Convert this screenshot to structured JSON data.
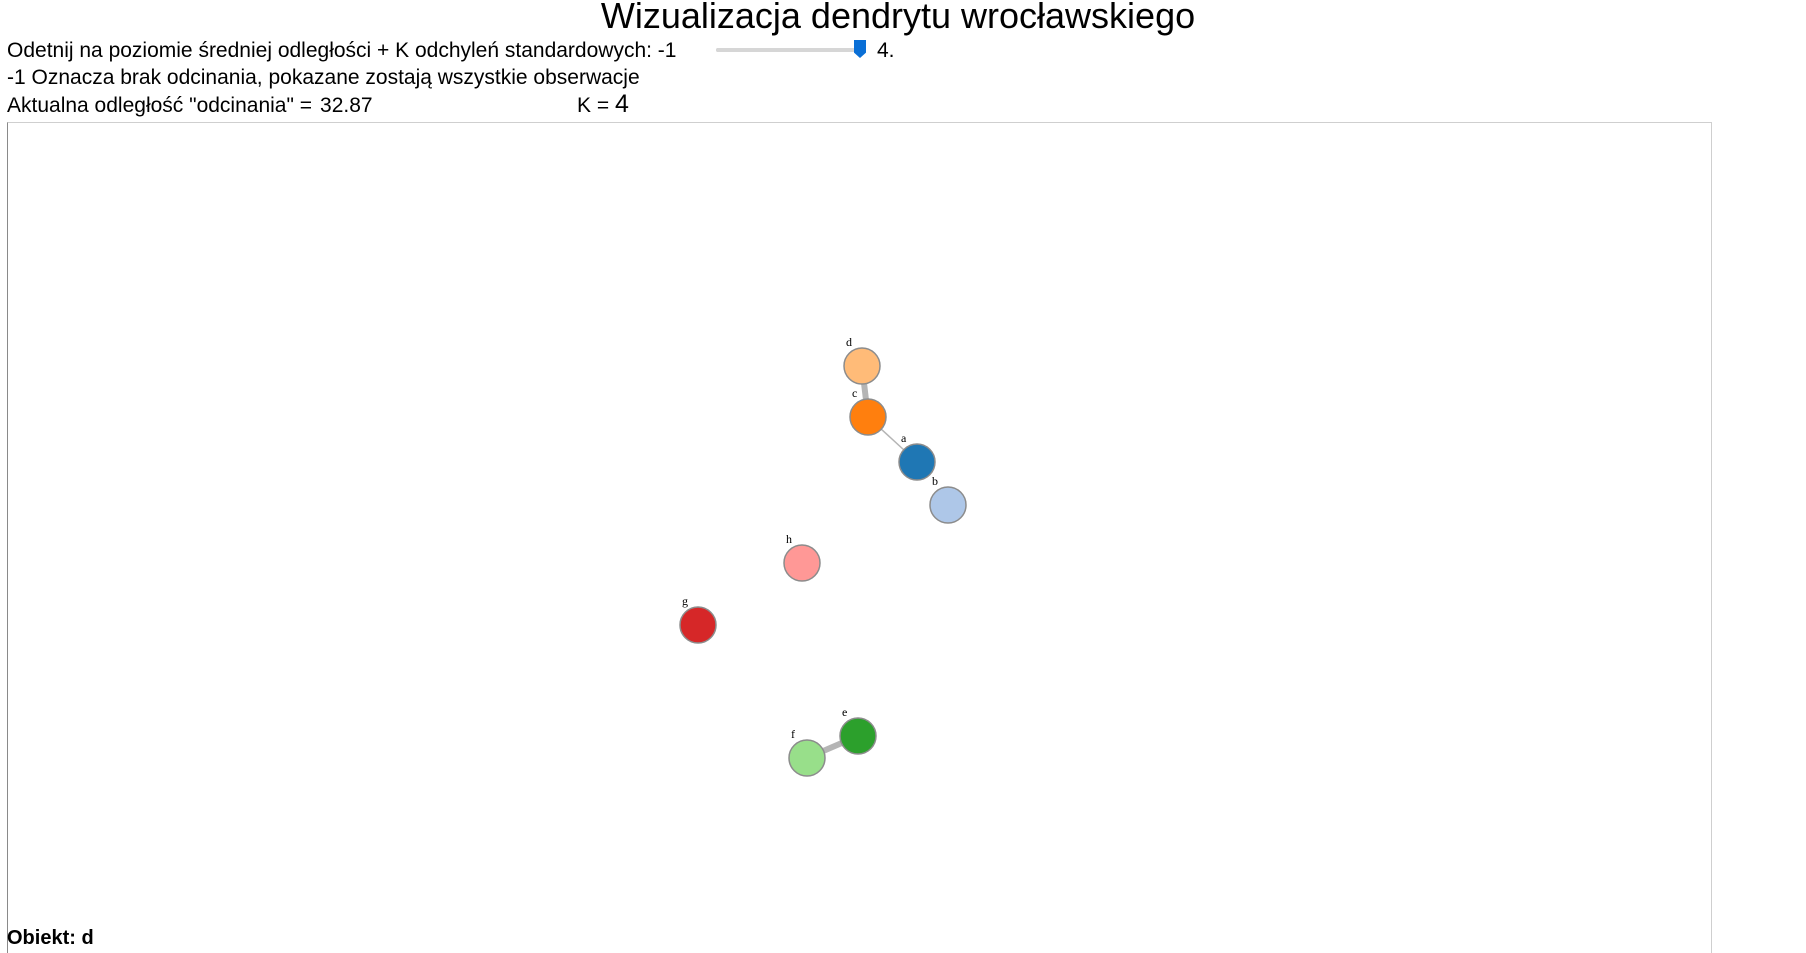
{
  "header": {
    "title": "Wizualizacja dendrytu wrocławskiego"
  },
  "controls": {
    "cutoff_prompt": "Odetnij na poziomie średniej odległości + K odchyleń standardowych: -1",
    "slider_max_label": "4.",
    "slider": {
      "min": -1,
      "max": 4,
      "value": 4
    },
    "note": "-1 Oznacza brak odcinania, pokazane zostają wszystkie obserwacje",
    "cutoff_label": "Aktualna odległość \"odcinania\" =",
    "cutoff_value": "32.87",
    "k_label": "K =",
    "k_value": "4"
  },
  "graph": {
    "nodes": [
      {
        "id": "d",
        "label": "d",
        "color": "#ffbb78"
      },
      {
        "id": "c",
        "label": "c",
        "color": "#ff7f0e"
      },
      {
        "id": "a",
        "label": "a",
        "color": "#1f77b4"
      },
      {
        "id": "b",
        "label": "b",
        "color": "#aec7e8"
      },
      {
        "id": "h",
        "label": "h",
        "color": "#ff9896"
      },
      {
        "id": "g",
        "label": "g",
        "color": "#d62728"
      },
      {
        "id": "e",
        "label": "e",
        "color": "#2ca02c"
      },
      {
        "id": "f",
        "label": "f",
        "color": "#98df8a"
      }
    ],
    "links": [
      {
        "source": "d",
        "target": "c",
        "weight": "thick"
      },
      {
        "source": "c",
        "target": "a",
        "weight": "thin"
      },
      {
        "source": "e",
        "target": "f",
        "weight": "thick"
      }
    ]
  },
  "footer": {
    "object_label": "Obiekt:",
    "object_value": "d"
  }
}
